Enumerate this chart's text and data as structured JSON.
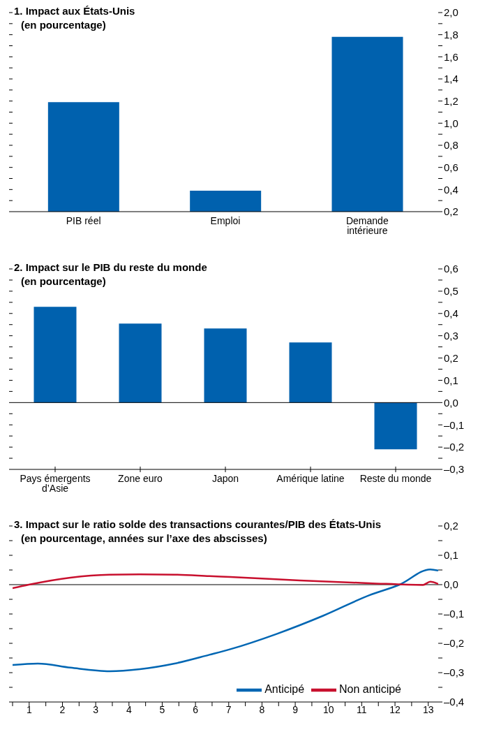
{
  "chart_data": [
    {
      "type": "bar",
      "title": "1. Impact aux États-Unis",
      "subtitle": "(en pourcentage)",
      "categories": [
        "PIB réel",
        "Emploi",
        "Demande intérieure"
      ],
      "values": [
        1.19,
        0.39,
        1.78
      ],
      "color": "#0061ae",
      "ylim": [
        0.2,
        2.0
      ],
      "yticks": [
        {
          "value": 0.2,
          "label": "0,2"
        },
        {
          "value": 0.3,
          "label": null
        },
        {
          "value": 0.4,
          "label": "0,4"
        },
        {
          "value": 0.5,
          "label": null
        },
        {
          "value": 0.6,
          "label": "0,6"
        },
        {
          "value": 0.7,
          "label": null
        },
        {
          "value": 0.8,
          "label": "0,8"
        },
        {
          "value": 0.9,
          "label": null
        },
        {
          "value": 1.0,
          "label": "1,0"
        },
        {
          "value": 1.1,
          "label": null
        },
        {
          "value": 1.2,
          "label": "1,2"
        },
        {
          "value": 1.3,
          "label": null
        },
        {
          "value": 1.4,
          "label": "1,4"
        },
        {
          "value": 1.5,
          "label": null
        },
        {
          "value": 1.6,
          "label": "1,6"
        },
        {
          "value": 1.7,
          "label": null
        },
        {
          "value": 1.8,
          "label": "1,8"
        },
        {
          "value": 1.9,
          "label": null
        },
        {
          "value": 2.0,
          "label": "2,0"
        }
      ]
    },
    {
      "type": "bar",
      "title": "2. Impact sur le PIB du reste du monde",
      "subtitle": "(en pourcentage)",
      "categories": [
        "Pays émergents d’Asie",
        "Zone euro",
        "Japon",
        "Amérique latine",
        "Reste du monde"
      ],
      "values": [
        0.43,
        0.355,
        0.333,
        0.27,
        -0.21
      ],
      "color": "#0061ae",
      "ylim": [
        -0.3,
        0.6
      ],
      "yticks": [
        {
          "value": -0.3,
          "label": "–0,3"
        },
        {
          "value": -0.25,
          "label": null
        },
        {
          "value": -0.2,
          "label": "–0,2"
        },
        {
          "value": -0.15,
          "label": null
        },
        {
          "value": -0.1,
          "label": "–0,1"
        },
        {
          "value": -0.05,
          "label": null
        },
        {
          "value": 0,
          "label": "0,0"
        },
        {
          "value": 0.05,
          "label": null
        },
        {
          "value": 0.1,
          "label": "0,1"
        },
        {
          "value": 0.15,
          "label": null
        },
        {
          "value": 0.2,
          "label": "0,2"
        },
        {
          "value": 0.25,
          "label": null
        },
        {
          "value": 0.3,
          "label": "0,3"
        },
        {
          "value": 0.35,
          "label": null
        },
        {
          "value": 0.4,
          "label": "0,4"
        },
        {
          "value": 0.45,
          "label": null
        },
        {
          "value": 0.5,
          "label": "0,5"
        },
        {
          "value": 0.55,
          "label": null
        },
        {
          "value": 0.6,
          "label": "0,6"
        }
      ],
      "ref_lines": [
        {
          "axis": "y",
          "value": 0
        }
      ]
    },
    {
      "type": "line",
      "title": "3. Impact sur le ratio solde des transactions courantes/PIB des États-Unis",
      "subtitle": "(en pourcentage, années sur l’axe des abscisses)",
      "legend": "bottom right",
      "xlim": [
        0.5,
        13.3
      ],
      "xticks": [
        {
          "value": 0.5,
          "label": null
        },
        1,
        {
          "value": 1.5,
          "label": null
        },
        2,
        {
          "value": 2.5,
          "label": null
        },
        3,
        {
          "value": 3.5,
          "label": null
        },
        4,
        {
          "value": 4.5,
          "label": null
        },
        5,
        {
          "value": 5.5,
          "label": null
        },
        6,
        {
          "value": 6.5,
          "label": null
        },
        7,
        {
          "value": 7.5,
          "label": null
        },
        8,
        {
          "value": 8.5,
          "label": null
        },
        9,
        {
          "value": 9.5,
          "label": null
        },
        10,
        {
          "value": 10.5,
          "label": null
        },
        11,
        {
          "value": 11.5,
          "label": null
        },
        12,
        {
          "value": 12.5,
          "label": null
        },
        13
      ],
      "ylim": [
        -0.4,
        0.2
      ],
      "yticks": [
        {
          "value": -0.4,
          "label": "–0,4"
        },
        {
          "value": -0.35,
          "label": null
        },
        {
          "value": -0.3,
          "label": "–0,3"
        },
        {
          "value": -0.25,
          "label": null
        },
        {
          "value": -0.2,
          "label": "–0,2"
        },
        {
          "value": -0.15,
          "label": null
        },
        {
          "value": -0.1,
          "label": "–0,1"
        },
        {
          "value": -0.05,
          "label": null
        },
        {
          "value": 0,
          "label": "0,0"
        },
        {
          "value": 0.05,
          "label": null
        },
        {
          "value": 0.1,
          "label": "0,1"
        },
        {
          "value": 0.15,
          "label": null
        },
        {
          "value": 0.2,
          "label": "0,2"
        }
      ],
      "ref_lines": [
        {
          "axis": "y",
          "value": 0
        }
      ],
      "series": [
        {
          "name": "Anticipé",
          "color": "#0066b3",
          "x": [
            0.5,
            1.26,
            2.24,
            3.42,
            4.33,
            5.37,
            6.42,
            7.05,
            8.44,
            9.84,
            11.23,
            12.14,
            13.06,
            13.3
          ],
          "values": [
            -0.274,
            -0.269,
            -0.283,
            -0.295,
            -0.288,
            -0.269,
            -0.239,
            -0.22,
            -0.168,
            -0.106,
            -0.036,
            0.0,
            0.052,
            0.048
          ]
        },
        {
          "name": "Non anticipé",
          "color": "#c8102e",
          "x": [
            0.5,
            0.99,
            2.24,
            3.42,
            4.33,
            5.37,
            6.42,
            7.05,
            9.14,
            11.23,
            12.84,
            13.06,
            13.3
          ],
          "values": [
            -0.012,
            0.0,
            0.024,
            0.034,
            0.035,
            0.034,
            0.029,
            0.026,
            0.014,
            0.005,
            -0.001,
            0.01,
            0.002
          ]
        }
      ]
    }
  ]
}
